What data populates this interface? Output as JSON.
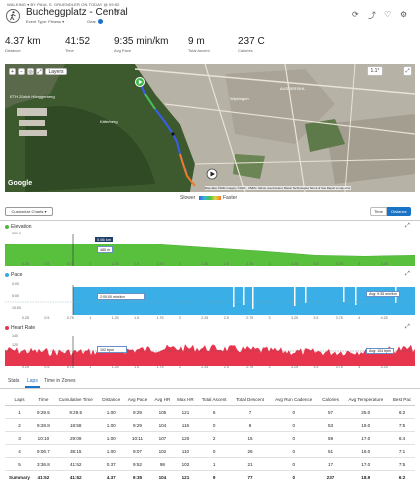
{
  "header": {
    "breadcrumb": "WALKING ▾   BY PAUL S. GRUENDLER ON TODAY @ 09:52",
    "avatar_icon": "walking-person-icon",
    "title": "Bucheggplatz - Central",
    "event_type": "Event Type: Fitness ▾",
    "gear": "Gear",
    "gear_count": "1"
  },
  "stats": [
    {
      "value": "4.37 km",
      "label": "Distance"
    },
    {
      "value": "41:52",
      "label": "Time"
    },
    {
      "value": "9:35 min/km",
      "label": "Avg Pace"
    },
    {
      "value": "9 m",
      "label": "Total Ascent"
    },
    {
      "value": "237 C",
      "label": "Calories"
    }
  ],
  "map": {
    "layers_label": "Layers",
    "zoom_label": "1.1°",
    "attribution": "Map data ©2021 Imagery ©2021 , CNES / Airbus, GeoContent, Maxar Technologies   Terms of Use   Report a map error",
    "google": "Google",
    "labels": [
      "ETH Zürich Hönggerberg",
      "Wipkingen",
      "AUSSERSIHL",
      "Käferberg"
    ]
  },
  "legend": {
    "slower": "Slower",
    "faster": "Faster"
  },
  "controls": {
    "customize": "Customize Charts ▾",
    "time": "Time",
    "distance": "Distance"
  },
  "charts": {
    "elevation": {
      "title": "Elevation",
      "color": "#4fb83b",
      "y_ticks": [
        "550.0",
        "500.0",
        "450.0"
      ],
      "tooltip_x": "0.66 km",
      "tooltip_value": "485 m",
      "x_ticks": [
        "0.25",
        "0.5",
        "0.75",
        "1",
        "1.25",
        "1.5",
        "1.75",
        "2",
        "2.25",
        "2.5",
        "2.75",
        "3",
        "3.25",
        "3.5",
        "3.75",
        "4",
        "4.25"
      ]
    },
    "pace": {
      "title": "Pace",
      "color": "#38a8e0",
      "y_ticks": [
        "0:00",
        "5:00",
        "10:00"
      ],
      "tooltip_value": "2:00:00 min/km",
      "avg_label": "Avg: 9:35 min/km",
      "x_ticks": [
        "0.25",
        "0.5",
        "0.75",
        "1",
        "1.25",
        "1.5",
        "1.75",
        "2",
        "2.25",
        "2.5",
        "2.75",
        "3",
        "3.25",
        "3.5",
        "3.75",
        "4",
        "4.25"
      ]
    },
    "heart_rate": {
      "title": "Heart Rate",
      "color": "#e8354e",
      "y_ticks": [
        "140",
        "120",
        "100",
        "80"
      ],
      "tooltip_value": "102 bpm",
      "avg_label": "Avg: 104 bpm",
      "x_ticks": [
        "0.25",
        "0.5",
        "0.75",
        "1",
        "1.25",
        "1.5",
        "1.75",
        "2",
        "2.25",
        "2.5",
        "2.75",
        "3",
        "3.25",
        "3.5",
        "3.75",
        "4",
        "4.25"
      ]
    }
  },
  "tabs": [
    "Stats",
    "Laps",
    "Time in Zones"
  ],
  "laps": {
    "columns": [
      "Laps",
      "Time",
      "Cumulative Time",
      "Distance",
      "Avg Pace",
      "Avg HR",
      "Max HR",
      "Total Ascent",
      "Total Descent",
      "Avg Run Cadence",
      "Calories",
      "Avg Temperature",
      "Best Pac"
    ],
    "rows": [
      [
        "1",
        "9:29.5",
        "9:29.5",
        "1.00",
        "9:29",
        "105",
        "121",
        "6",
        "7",
        "0",
        "57",
        "25.0",
        "6:2"
      ],
      [
        "2",
        "9:28.8",
        "18:58",
        "1.00",
        "9:29",
        "104",
        "116",
        "0",
        "8",
        "0",
        "53",
        "19.0",
        "7:5"
      ],
      [
        "3",
        "10:10",
        "29:09",
        "1.00",
        "10:11",
        "107",
        "120",
        "2",
        "15",
        "0",
        "59",
        "17.0",
        "6:4"
      ],
      [
        "4",
        "9:06.7",
        "38:15",
        "1.00",
        "9:07",
        "102",
        "110",
        "0",
        "26",
        "0",
        "51",
        "16.0",
        "7:1"
      ],
      [
        "5",
        "3:36.8",
        "41:52",
        "0.37",
        "9:52",
        "98",
        "102",
        "1",
        "21",
        "0",
        "17",
        "17.0",
        "7:5"
      ]
    ],
    "summary": [
      "Summary",
      "41:52",
      "41:52",
      "4.37",
      "9:35",
      "104",
      "121",
      "9",
      "77",
      "0",
      "237",
      "18.9",
      "6:2"
    ]
  }
}
